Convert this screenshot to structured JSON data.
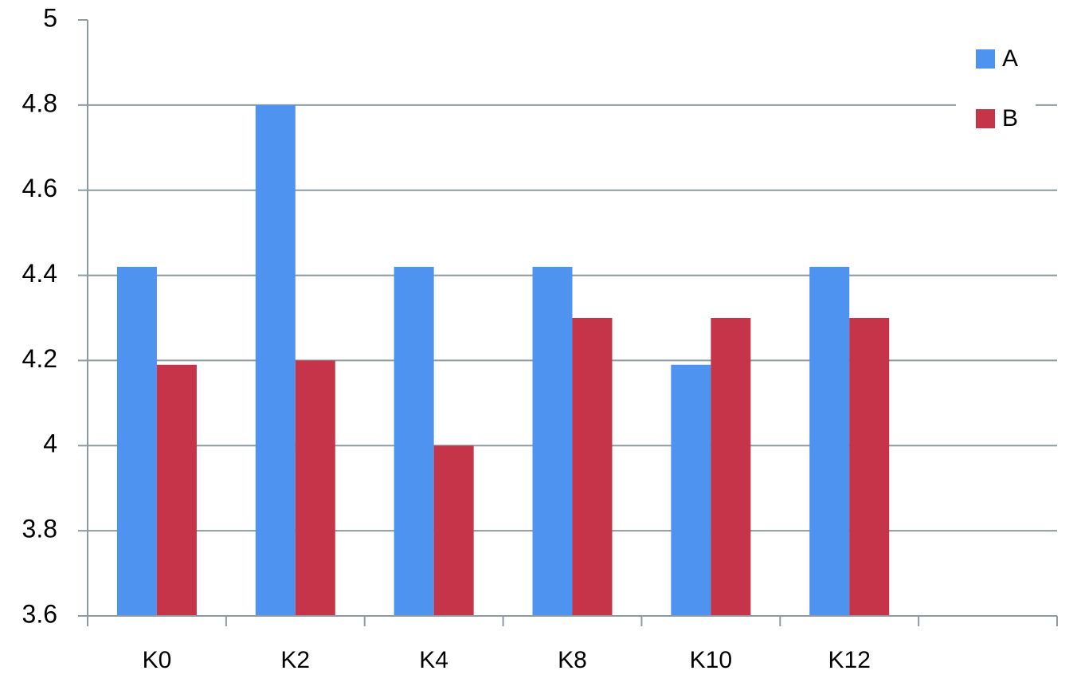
{
  "chart_data": {
    "type": "bar",
    "categories": [
      "K0",
      "K2",
      "K4",
      "K8",
      "K10",
      "K12",
      null
    ],
    "series": [
      {
        "name": "A",
        "color": "#4f93f0",
        "values": [
          4.42,
          4.8,
          4.42,
          4.42,
          4.19,
          4.42,
          null
        ]
      },
      {
        "name": "B",
        "color": "#c6344a",
        "values": [
          4.19,
          4.2,
          4.0,
          4.3,
          4.3,
          4.3,
          null
        ]
      }
    ],
    "ylim": [
      3.6,
      5
    ],
    "yticks": [
      3.6,
      3.8,
      4,
      4.2,
      4.4,
      4.6,
      4.8,
      5
    ],
    "grid": true,
    "legend": "top-right"
  }
}
